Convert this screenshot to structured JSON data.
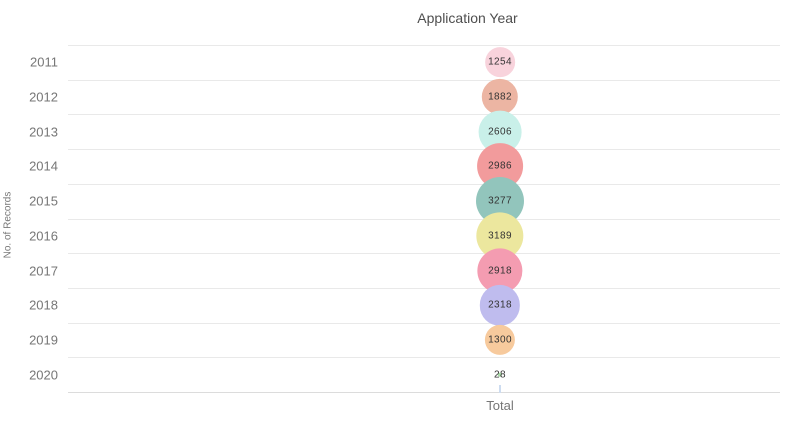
{
  "chart_data": {
    "type": "scatter",
    "subtype": "bubble",
    "title": "Application Year",
    "ylabel": "No. of Records",
    "xlabel": "",
    "x_axis_category": "Total",
    "categories": [
      "2011",
      "2012",
      "2013",
      "2014",
      "2015",
      "2016",
      "2017",
      "2018",
      "2019",
      "2020"
    ],
    "values": [
      1254,
      1882,
      2606,
      2986,
      3277,
      3189,
      2918,
      2318,
      1300,
      28
    ],
    "bubble_colors": [
      "#f8d3dc",
      "#ecb5a3",
      "#c9f0e9",
      "#f29b9c",
      "#92c5bc",
      "#ece79e",
      "#f49cb1",
      "#bfbcee",
      "#f7ca9d",
      "#a9daa7"
    ],
    "value_labels_shown": true,
    "grid": true,
    "legend": "none",
    "max_radius_px": 24
  },
  "colors": {
    "background": "#ffffff",
    "gridline": "#e9e9e9",
    "axis_line": "#dcdcdc",
    "x_tick": "#cddcf0",
    "title_text": "#4e4e4e",
    "axis_text": "#767676",
    "value_text": "#333333"
  }
}
